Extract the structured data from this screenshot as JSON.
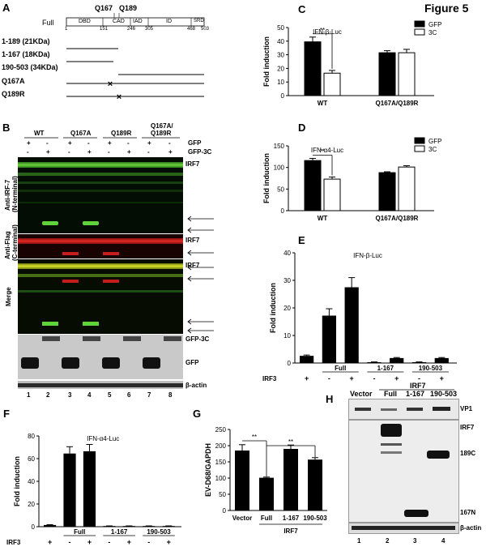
{
  "figure_title": "Figure 5",
  "panels": {
    "A": {
      "label": "A",
      "full_label": "Full",
      "top_labels": [
        "Q167",
        "Q189"
      ],
      "domains": [
        "DBD",
        "CAD",
        "IAD",
        "ID",
        "SRD"
      ],
      "positions": [
        "1",
        "151",
        "246",
        "305",
        "468",
        "503"
      ],
      "constructs": [
        "1-189 (21KDa)",
        "1-167 (18KDa)",
        "190-503 (34KDa)",
        "Q167A",
        "Q189R"
      ]
    },
    "B": {
      "label": "B",
      "lanes": [
        "1",
        "2",
        "3",
        "4",
        "5",
        "6",
        "7",
        "8"
      ],
      "groups": [
        "WT",
        "Q167A",
        "Q189R",
        "Q167A/",
        "Q189R"
      ],
      "row_labels": [
        "GFP",
        "GFP-3C"
      ],
      "signs": {
        "gfp": [
          "+",
          "-",
          "+",
          "-",
          "+",
          "-",
          "+",
          "-"
        ],
        "gfp3c": [
          "-",
          "+",
          "-",
          "+",
          "-",
          "+",
          "-",
          "+"
        ]
      },
      "left_labels": [
        "Anti-IRF-7",
        "(N-terminal)",
        "Anti-Flag",
        "(C-terminal)",
        "Merge"
      ],
      "right_labels": [
        "IRF7",
        "IRF7",
        "IRF7",
        "GFP-3C",
        "GFP",
        "β-actin"
      ]
    },
    "H": {
      "label": "H",
      "header": [
        "Vector",
        "Full",
        "1-167",
        "190-503"
      ],
      "group_label": "IRF7",
      "right_labels": [
        "VP1",
        "IRF7",
        "189C",
        "167N",
        "β-actin"
      ],
      "lanes": [
        "1",
        "2",
        "3",
        "4"
      ]
    }
  },
  "chart_data": [
    {
      "panel": "C",
      "type": "bar",
      "title": "IFN-β-Luc",
      "ylabel": "Fold induction",
      "ylim": [
        0,
        50
      ],
      "yticks": [
        "0",
        "10",
        "20",
        "30",
        "40",
        "50"
      ],
      "categories": [
        "WT",
        "Q167A/Q189R"
      ],
      "series": [
        {
          "name": "GFP",
          "values": [
            39.5,
            31.5
          ],
          "errors": [
            3.5,
            1.5
          ],
          "color": "#000000"
        },
        {
          "name": "3C",
          "values": [
            16.5,
            31.5
          ],
          "errors": [
            2.0,
            2.5
          ],
          "color": "#ffffff"
        }
      ],
      "annotation": "**"
    },
    {
      "panel": "D",
      "type": "bar",
      "title": "IFN-α4-Luc",
      "ylabel": "Fold induction",
      "ylim": [
        0,
        150
      ],
      "yticks": [
        "0",
        "50",
        "100",
        "150"
      ],
      "categories": [
        "WT",
        "Q167A/Q189R"
      ],
      "series": [
        {
          "name": "GFP",
          "values": [
            116,
            88
          ],
          "errors": [
            5,
            2
          ],
          "color": "#000000"
        },
        {
          "name": "3C",
          "values": [
            73,
            101
          ],
          "errors": [
            5,
            3
          ],
          "color": "#ffffff"
        }
      ],
      "annotation": "**"
    },
    {
      "panel": "E",
      "type": "bar",
      "title": "IFN-β-Luc",
      "ylabel": "Fold induction",
      "ylim": [
        0,
        40
      ],
      "yticks": [
        "0",
        "10",
        "20",
        "30",
        "40"
      ],
      "values": [
        2.6,
        17.2,
        27.5,
        0.3,
        1.8,
        0.3,
        1.8
      ],
      "errors": [
        0.3,
        2.5,
        3.5,
        0.1,
        0.2,
        0.1,
        0.2
      ],
      "x_signs": [
        "+",
        "-",
        "+",
        "-",
        "+",
        "-",
        "+"
      ],
      "row_label": "IRF3",
      "groups": [
        "Full",
        "1-167",
        "190-503"
      ]
    },
    {
      "panel": "F",
      "type": "bar",
      "title": "IFN-α4-Luc",
      "ylabel": "Fold induction",
      "ylim": [
        0,
        80
      ],
      "yticks": [
        "0",
        "20",
        "40",
        "60",
        "80"
      ],
      "values": [
        1.5,
        64.5,
        66.5,
        0.6,
        0.6,
        0.6,
        0.6
      ],
      "errors": [
        0.3,
        6,
        6,
        0.1,
        0.1,
        0.1,
        0.1
      ],
      "x_signs": [
        "+",
        "-",
        "+",
        "-",
        "+",
        "-",
        "+"
      ],
      "row_label": "IRF3",
      "groups": [
        "Full",
        "1-167",
        "190-503"
      ]
    },
    {
      "panel": "G",
      "type": "bar",
      "ylabel": "EV-D68/GAPDH",
      "ylim": [
        0,
        250
      ],
      "yticks": [
        "0",
        "50",
        "100",
        "150",
        "200",
        "250"
      ],
      "categories": [
        "Vector",
        "Full",
        "1-167",
        "190-503"
      ],
      "values": [
        185,
        101,
        190,
        157
      ],
      "errors": [
        18,
        2,
        12,
        6
      ],
      "group_label": "IRF7",
      "annotations": [
        "**",
        "**"
      ]
    }
  ]
}
